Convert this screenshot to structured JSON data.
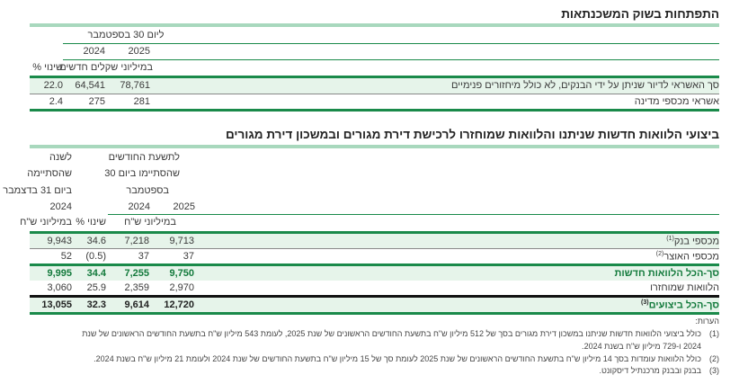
{
  "table1": {
    "title": "התפתחות בשוק המשכנתאות",
    "header_period": "ליום 30 בספטמבר",
    "year_2025": "2025",
    "year_2024": "2024",
    "units": "במיליוני שקלים חדשים",
    "change_header": "שינוי %",
    "rows": [
      {
        "label": "סך האשראי לדיור שניתן על ידי הבנקים, לא כולל מיחזורים פנימיים",
        "v2025": "78,761",
        "v2024": "64,541",
        "change": "22.0"
      },
      {
        "label": "אשראי מכספי מדינה",
        "v2025": "281",
        "v2024": "275",
        "change": "2.4"
      }
    ]
  },
  "table2": {
    "title": "ביצועי הלוואות חדשות שניתנו והלוואות שמוחזרו לרכישת דירת מגורים ובמשכון דירת מגורים",
    "period_header": [
      "לתשעת החודשים",
      "שהסתיימו ביום 30",
      "בספטמבר"
    ],
    "year_header": [
      "לשנה",
      "שהסתיימה",
      "ביום 31 בדצמבר",
      "2024"
    ],
    "year_2025": "2025",
    "year_2024": "2024",
    "units": "במיליוני ש\"ח",
    "change_header": "שינוי %",
    "units_year": "במיליוני ש\"ח",
    "rows": [
      {
        "label": "מכספי בנק",
        "note": "(1)",
        "v2025": "9,713",
        "v2024": "7,218",
        "change": "34.6",
        "year": "9,943"
      },
      {
        "label": "מכספי האוצר",
        "note": "(2)",
        "v2025": "37",
        "v2024": "37",
        "change": "(0.5)",
        "year": "52"
      },
      {
        "label": "סך-הכל הלוואות חדשות",
        "note": "",
        "v2025": "9,750",
        "v2024": "7,255",
        "change": "34.4",
        "year": "9,995"
      },
      {
        "label": "הלוואות שמוחזרו",
        "note": "",
        "v2025": "2,970",
        "v2024": "2,359",
        "change": "25.9",
        "year": "3,060"
      },
      {
        "label": "סך-הכל ביצועים",
        "note": "(3)",
        "v2025": "12,720",
        "v2024": "9,614",
        "change": "32.3",
        "year": "13,055"
      }
    ]
  },
  "notes": {
    "heading": "הערות:",
    "items": [
      {
        "num": "(1)",
        "lines": [
          "כולל ביצועי הלוואות חדשות שניתנו במשכון דירת מגורים בסך של 512 מיליון ש\"ח בתשעת החודשים הראשונים של שנת 2025, לעומת 543 מיליון ש\"ח בתשעת החודשים הראשונים של שנת",
          "2024 ו-729 מיליון ש\"ח בשנת 2024."
        ]
      },
      {
        "num": "(2)",
        "lines": [
          "כולל הלוואות עומדות בסך 14 מיליון ש\"ח בתשעת החודשים הראשונים של שנת 2025 לעומת סך של 15 מיליון ש\"ח בתשעת החודשים של שנת 2024 ולעומת 21 מיליון ש\"ח בשנת 2024."
        ]
      },
      {
        "num": "(3)",
        "lines": [
          "בבנק ובבנק מרכנתיל דיסקונט."
        ]
      }
    ]
  },
  "colors": {
    "accent": "#1a8a4a",
    "light_bar": "#a8d8bd",
    "row_bg": "#e6f4ea"
  }
}
